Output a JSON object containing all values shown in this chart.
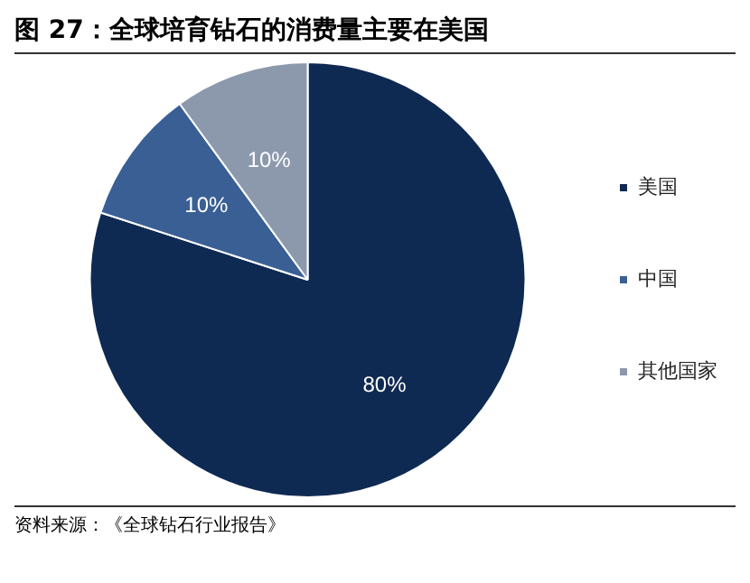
{
  "chart_data": {
    "type": "pie",
    "title": "图 27：全球培育钻石的消费量主要在美国",
    "categories": [
      "美国",
      "中国",
      "其他国家"
    ],
    "values": [
      80,
      10,
      10
    ],
    "colors": [
      "#0f2a52",
      "#3a5f95",
      "#8c99ad"
    ],
    "value_labels": [
      "80%",
      "10%",
      "10%"
    ],
    "legend": "right",
    "annotations": [
      "资料来源：《全球钻石行业报告》"
    ]
  }
}
